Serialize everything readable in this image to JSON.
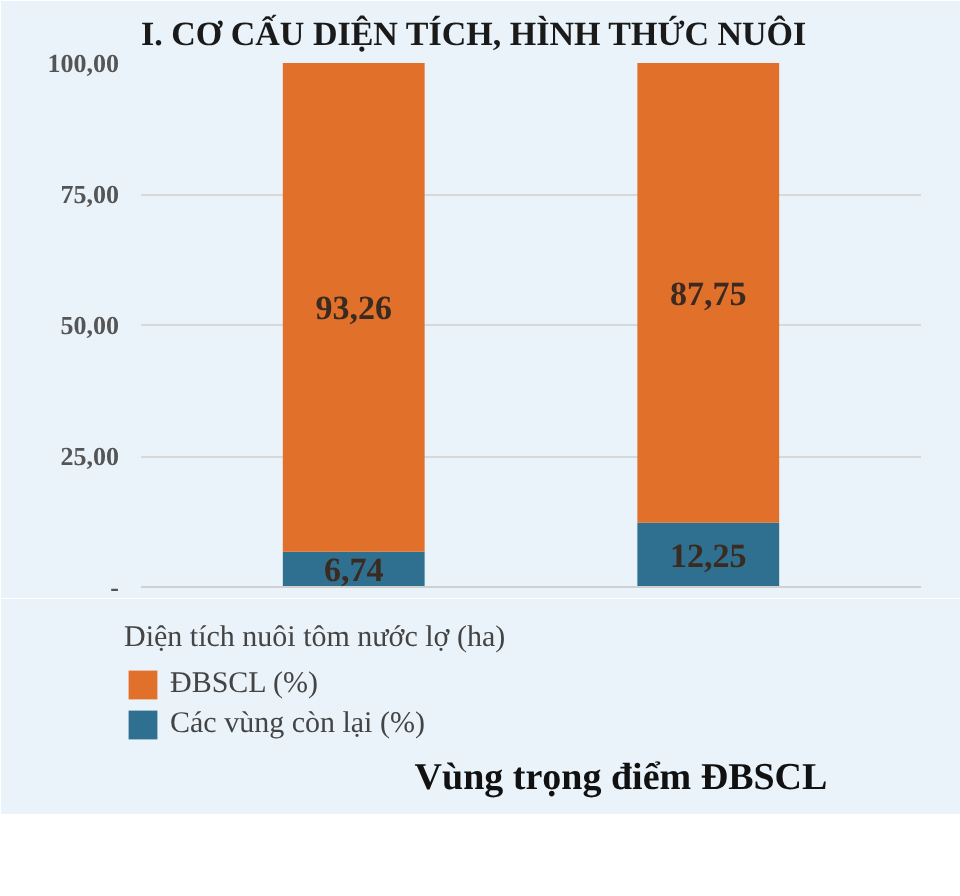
{
  "chart_data": {
    "type": "bar",
    "title": "I. CƠ CẤU DIỆN TÍCH, HÌNH THỨC NUÔI",
    "categories": [
      null,
      null
    ],
    "stacked": true,
    "series": [
      {
        "name": "Các vùng còn lại (%)",
        "color": "#2f6f8f",
        "values": [
          6.74,
          12.25
        ]
      },
      {
        "name": "ĐBSCL (%)",
        "color": "#e0702a",
        "values": [
          93.26,
          87.75
        ]
      }
    ],
    "value_labels": [
      [
        "6,74",
        "12,25"
      ],
      [
        "93,26",
        "87,75"
      ]
    ],
    "ylim": [
      0,
      100
    ],
    "yticks": [
      {
        "value": 0,
        "label": "-"
      },
      {
        "value": 25,
        "label": "25,00"
      },
      {
        "value": 50,
        "label": "50,00"
      },
      {
        "value": 75,
        "label": "75,00"
      },
      {
        "value": 100,
        "label": "100,00"
      }
    ],
    "grid": "y",
    "legend": "bottom",
    "legend_title": "Diện tích nuôi tôm nước lợ (ha)",
    "annotations": [
      "Vùng trọng điểm ĐBSCL"
    ]
  }
}
